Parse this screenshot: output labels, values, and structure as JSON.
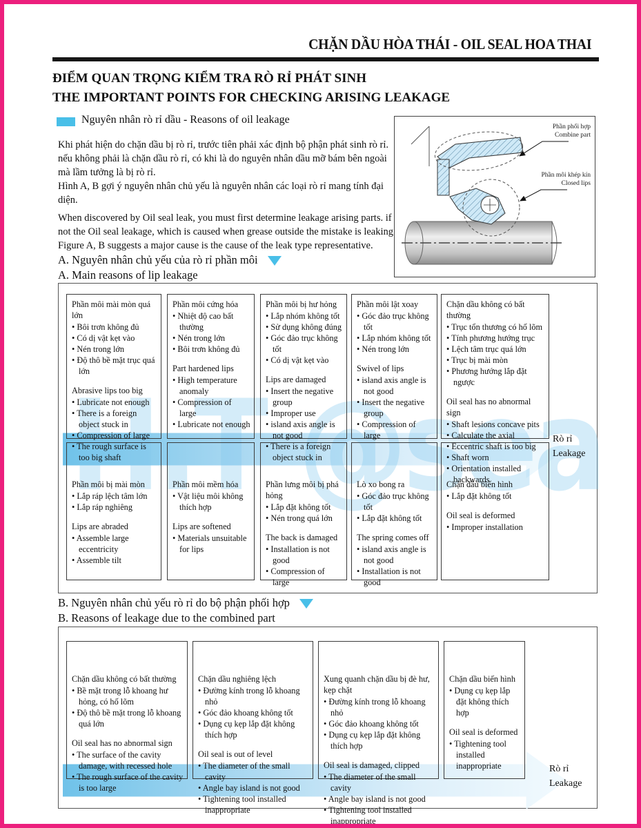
{
  "header": {
    "brand": "CHẶN DẦU HÒA THÁI - OIL SEAL HOA THAI"
  },
  "titles": {
    "vi": "ĐIỂM QUAN TRỌNG KIỂM TRA RÒ RỈ PHÁT SINH",
    "en": "THE IMPORTANT POINTS FOR CHECKING ARISING LEAKAGE"
  },
  "legend": {
    "label": "Nguyên nhân rò rỉ dầu - Reasons of oil leakage",
    "swatch_color": "#49bfe8"
  },
  "intro": {
    "vi1": "Khi phát hiện do chặn dầu bị rò rỉ, trước tiên phải xác định bộ phận phát sinh rò rỉ. nếu không phải là chặn dầu rò rỉ, có khi là do nguyên nhân dầu mỡ bám bên ngoài mà lầm tưởng là bị rò rỉ.",
    "vi2": "Hình A, B gợi ý nguyên nhân chủ yếu là nguyên nhân các loại rò rỉ mang tính đại diện.",
    "en1": "When discovered by Oil seal leak, you must first determine leakage arising parts. if not the Oil seal leakage, which is caused when grease outside the mistake is leaking.",
    "en2": "Figure A, B suggests a major cause is the cause of the leak type representative."
  },
  "diagram": {
    "label1_vi": "Phần phối hợp",
    "label1_en": "Combine part",
    "label2_vi": "Phần môi khép kín",
    "label2_en": "Closed lips"
  },
  "watermark": "H.T @sea",
  "accent_color": "#49bfe8",
  "border_color": "#ec1f7d",
  "section_a": {
    "heading_vi": "A. Nguyên nhân chủ yếu của rò rỉ phần môi",
    "heading_en": "A. Main reasons of lip leakage",
    "leak_vi": "Rò rỉ",
    "leak_en": "Leakage",
    "row1": [
      {
        "vi_title": "Phần môi mài mòn quá lớn",
        "vi_items": [
          "Bôi trơn không đủ",
          "Có dị vật kẹt vào",
          "Nén trong lớn",
          "Độ thô bề mặt trục quá lớn"
        ],
        "en_title": "Abrasive lips too big",
        "en_items": [
          "Lubricate not enough",
          "There is a foreign object stuck in",
          "Compression of large",
          "The rough surface is too big shaft"
        ]
      },
      {
        "vi_title": "Phần môi cứng hóa",
        "vi_items": [
          "Nhiệt độ cao bất thường",
          "Nén trong lớn",
          "Bôi trơn không đủ"
        ],
        "en_title": "Part hardened lips",
        "en_items": [
          "High temperature anomaly",
          "Compression of large",
          "Lubricate not enough"
        ]
      },
      {
        "vi_title": "Phần môi bị hư hỏng",
        "vi_items": [
          "Lắp nhóm không tốt",
          "Sử dụng không đúng",
          "Góc đảo trục không tốt",
          "Có dị vật kẹt vào"
        ],
        "en_title": "Lips are damaged",
        "en_items": [
          "Insert the negative group",
          "Improper use",
          "island axis angle is not good",
          "There is a foreign object stuck in"
        ]
      },
      {
        "vi_title": "Phần môi lật xoay",
        "vi_items": [
          "Góc đảo trục không tốt",
          "Lắp nhóm không tốt",
          "Nén trong lớn"
        ],
        "en_title": "Swivel of lips",
        "en_items": [
          "island axis angle is not good",
          "Insert the negative group",
          "Compression of large"
        ]
      },
      {
        "vi_title": "Chặn dầu không có bất thường",
        "vi_items": [
          "Trục tổn thương có hố lõm",
          "Tính phương hướng trục",
          "Lệch tâm trục quá lớn",
          "Trục bị mài mòn",
          "Phương hướng lắp đặt ngược"
        ],
        "en_title": "Oil seal has no abnormal sign",
        "en_items": [
          "Shaft lesions concave pits",
          "Calculate the axial",
          "Eccentric shaft is too big",
          "Shaft worn",
          "Orientation installed backwards"
        ]
      }
    ],
    "row2": [
      {
        "vi_title": "Phần môi bị mài mòn",
        "vi_items": [
          "Lắp ráp lệch tâm lớn",
          "Lắp ráp nghiêng"
        ],
        "en_title": "Lips are abraded",
        "en_items": [
          "Assemble large eccentricity",
          "Assemble tilt"
        ]
      },
      {
        "vi_title": "Phần môi mềm hóa",
        "vi_items": [
          "Vật liệu môi không thích hợp"
        ],
        "en_title": "Lips are softened",
        "en_items": [
          "Materials unsuitable for lips"
        ]
      },
      {
        "vi_title": "Phần lưng môi bị phá hỏng",
        "vi_items": [
          "Lắp đặt không tốt",
          "Nén trong quá lớn"
        ],
        "en_title": "The back is damaged",
        "en_items": [
          "Installation is not good",
          "Compression of large"
        ]
      },
      {
        "vi_title": "Lò xo bong ra",
        "vi_items": [
          "Góc đảo trục không tốt",
          "Lắp đặt không tốt"
        ],
        "en_title": "The spring comes off",
        "en_items": [
          "island axis angle is not good",
          "Installation is not good"
        ]
      },
      {
        "vi_title": "Chặn dầu biến hình",
        "vi_items": [
          "Lắp đặt không tốt"
        ],
        "en_title": "Oil seal is deformed",
        "en_items": [
          "Improper installation"
        ]
      }
    ]
  },
  "section_b": {
    "heading_vi": "B. Nguyên nhân chủ yếu rò rỉ do bộ phận phối hợp",
    "heading_en": "B. Reasons of leakage due to the combined part",
    "leak_vi": "Rò rỉ",
    "leak_en": "Leakage",
    "boxes": [
      {
        "vi_title": "Chặn dầu không có bất thường",
        "vi_items": [
          "Bề mặt trong lỗ khoang hư hỏng, có hố lõm",
          "Độ thô bề mặt trong lỗ khoang quá lớn"
        ],
        "en_title": "Oil seal has no abnormal sign",
        "en_items": [
          "The surface of the cavity damage, with recessed hole",
          "The rough surface of the cavity is too large"
        ]
      },
      {
        "vi_title": "Chặn dầu nghiêng lệch",
        "vi_items": [
          "Đường kính trong lỗ khoang nhỏ",
          "Góc đảo khoang không tốt",
          "Dụng cụ kẹp lắp đặt không thích hợp"
        ],
        "en_title": "Oil seal is out of level",
        "en_items": [
          "The diameter of the small cavity",
          "Angle bay island is not good",
          "Tightening tool installed inappropriate"
        ]
      },
      {
        "vi_title": "Xung quanh chặn dầu bị đè hư, kẹp chặt",
        "vi_items": [
          "Đường kính trong lỗ khoang nhỏ",
          "Góc đảo khoang không tốt",
          "Dụng cụ kẹp lắp đặt không thích hợp"
        ],
        "en_title": "Oil seal is damaged, clipped",
        "en_items": [
          "The diameter of the small cavity",
          "Angle bay island is not good",
          "Tightening tool installed inappropriate"
        ]
      },
      {
        "vi_title": "Chặn dầu biến hình",
        "vi_items": [
          "Dụng cụ kẹp lắp đặt không thích hợp"
        ],
        "en_title": "Oil seal is deformed",
        "en_items": [
          "Tightening tool installed inappropriate"
        ]
      }
    ]
  }
}
